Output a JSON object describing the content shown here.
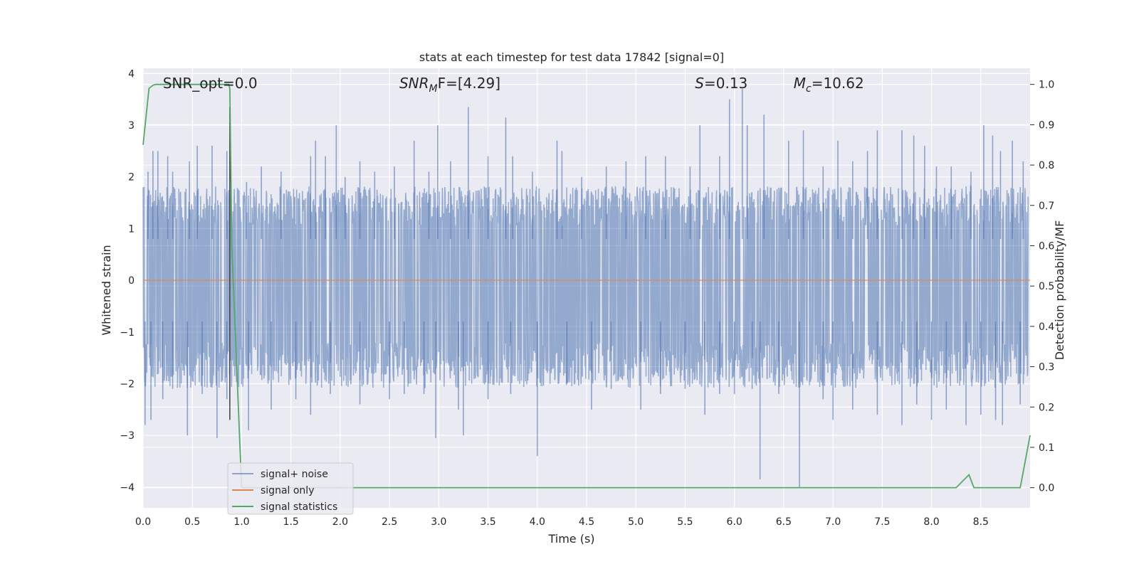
{
  "chart_data": {
    "type": "line",
    "title": "stats at each timestep for test data 17842 [signal=0]",
    "xlabel": "Time (s)",
    "ylabel": "Whitened strain",
    "ylabel_right": "Detection probability/MF",
    "xlim": [
      0.0,
      9.0
    ],
    "ylim": [
      -4.4,
      4.1
    ],
    "ylim_right": [
      -0.05,
      1.04
    ],
    "x_ticks": [
      0.0,
      0.5,
      1.0,
      1.5,
      2.0,
      2.5,
      3.0,
      3.5,
      4.0,
      4.5,
      5.0,
      5.5,
      6.0,
      6.5,
      7.0,
      7.5,
      8.0,
      8.5
    ],
    "x_tick_labels": [
      "0.0",
      "0.5",
      "1.0",
      "1.5",
      "2.0",
      "2.5",
      "3.0",
      "3.5",
      "4.0",
      "4.5",
      "5.0",
      "5.5",
      "6.0",
      "6.5",
      "7.0",
      "7.5",
      "8.0",
      "8.5"
    ],
    "y_ticks": [
      4,
      3,
      2,
      1,
      0,
      -1,
      -2,
      -3,
      -4
    ],
    "y_tick_labels": [
      "4",
      "3",
      "2",
      "1",
      "0",
      "−1",
      "−2",
      "−3",
      "−4"
    ],
    "y_ticks_right": [
      1.0,
      0.9,
      0.8,
      0.7,
      0.6,
      0.5,
      0.4,
      0.3,
      0.2,
      0.1,
      0.0
    ],
    "y_tick_labels_right": [
      "1.0",
      "0.9",
      "0.8",
      "0.7",
      "0.6",
      "0.5",
      "0.4",
      "0.3",
      "0.2",
      "0.1",
      "0.0"
    ],
    "grid": true,
    "legend_position": "lower-left",
    "annotations": [
      {
        "label": "SNR_opt=0.0",
        "x": 0.2,
        "y": 3.8,
        "italic_prefix": false
      },
      {
        "label": "SNR",
        "subscript": "M",
        "suffix": "F=[4.29]",
        "x": 2.6,
        "y": 3.8,
        "italic_prefix": true
      },
      {
        "label": "S",
        "suffix": "=0.13",
        "x": 5.6,
        "y": 3.8,
        "italic_prefix": true
      },
      {
        "label": "M",
        "subscript": "c",
        "suffix": "=10.62",
        "x": 6.6,
        "y": 3.8,
        "italic_prefix": true
      }
    ],
    "marker_line": {
      "x": 0.88,
      "y_range": [
        -2.7,
        3.35
      ]
    },
    "series": [
      {
        "name": "signal+ noise",
        "color": "#4c72b0",
        "axis": "left",
        "style": "dense-noise",
        "envelope_upper_typical": 1.4,
        "envelope_lower_typical": -1.6,
        "spikes_up": [
          [
            0.05,
            2.1
          ],
          [
            0.1,
            2.5
          ],
          [
            0.15,
            2.5
          ],
          [
            0.25,
            2.4
          ],
          [
            0.3,
            2.1
          ],
          [
            0.47,
            2.3
          ],
          [
            0.55,
            2.6
          ],
          [
            0.7,
            2.6
          ],
          [
            0.85,
            2.5
          ],
          [
            1.05,
            1.9
          ],
          [
            1.2,
            2.2
          ],
          [
            1.4,
            2.1
          ],
          [
            1.7,
            2.4
          ],
          [
            1.75,
            2.7
          ],
          [
            1.85,
            2.4
          ],
          [
            1.96,
            3.0
          ],
          [
            2.05,
            2.0
          ],
          [
            2.2,
            2.3
          ],
          [
            2.35,
            2.1
          ],
          [
            2.55,
            2.2
          ],
          [
            2.75,
            2.7
          ],
          [
            2.9,
            2.1
          ],
          [
            2.99,
            3.0
          ],
          [
            3.12,
            2.3
          ],
          [
            3.3,
            3.35
          ],
          [
            3.5,
            2.4
          ],
          [
            3.68,
            3.15
          ],
          [
            3.75,
            2.4
          ],
          [
            3.95,
            2.1
          ],
          [
            4.2,
            2.7
          ],
          [
            4.25,
            2.5
          ],
          [
            4.45,
            2.0
          ],
          [
            4.7,
            2.2
          ],
          [
            4.9,
            2.3
          ],
          [
            5.1,
            2.4
          ],
          [
            5.3,
            2.4
          ],
          [
            5.55,
            2.2
          ],
          [
            5.65,
            3.0
          ],
          [
            5.85,
            2.4
          ],
          [
            5.95,
            3.5
          ],
          [
            6.08,
            3.7
          ],
          [
            6.13,
            3.0
          ],
          [
            6.3,
            3.2
          ],
          [
            6.55,
            2.7
          ],
          [
            6.7,
            2.9
          ],
          [
            6.9,
            2.2
          ],
          [
            7.05,
            2.7
          ],
          [
            7.2,
            2.3
          ],
          [
            7.35,
            2.5
          ],
          [
            7.45,
            2.9
          ],
          [
            7.7,
            2.9
          ],
          [
            7.82,
            2.8
          ],
          [
            7.93,
            2.6
          ],
          [
            8.05,
            2.2
          ],
          [
            8.2,
            2.2
          ],
          [
            8.4,
            2.1
          ],
          [
            8.53,
            3.0
          ],
          [
            8.62,
            2.8
          ],
          [
            8.7,
            2.5
          ],
          [
            8.82,
            2.7
          ],
          [
            8.93,
            2.3
          ]
        ],
        "spikes_down": [
          [
            0.02,
            -2.8
          ],
          [
            0.08,
            -2.7
          ],
          [
            0.2,
            -2.3
          ],
          [
            0.3,
            -2.1
          ],
          [
            0.45,
            -3.0
          ],
          [
            0.6,
            -2.2
          ],
          [
            0.75,
            -3.05
          ],
          [
            0.85,
            -2.3
          ],
          [
            1.07,
            -2.9
          ],
          [
            1.3,
            -2.5
          ],
          [
            1.55,
            -2.3
          ],
          [
            1.7,
            -2.6
          ],
          [
            1.9,
            -2.2
          ],
          [
            2.2,
            -2.4
          ],
          [
            2.5,
            -2.3
          ],
          [
            2.65,
            -2.2
          ],
          [
            2.85,
            -2.2
          ],
          [
            2.97,
            -3.05
          ],
          [
            3.2,
            -2.5
          ],
          [
            3.25,
            -3.0
          ],
          [
            3.5,
            -2.3
          ],
          [
            3.73,
            -2.2
          ],
          [
            4.0,
            -3.4
          ],
          [
            4.3,
            -2.0
          ],
          [
            4.55,
            -2.5
          ],
          [
            4.75,
            -2.1
          ],
          [
            5.05,
            -2.5
          ],
          [
            5.25,
            -2.2
          ],
          [
            5.5,
            -2.1
          ],
          [
            5.7,
            -2.6
          ],
          [
            5.85,
            -2.2
          ],
          [
            6.0,
            -2.2
          ],
          [
            6.18,
            -2.1
          ],
          [
            6.26,
            -3.85
          ],
          [
            6.45,
            -2.2
          ],
          [
            6.66,
            -4.0
          ],
          [
            6.9,
            -2.3
          ],
          [
            7.0,
            -2.7
          ],
          [
            7.2,
            -2.5
          ],
          [
            7.45,
            -2.6
          ],
          [
            7.7,
            -2.8
          ],
          [
            7.85,
            -2.4
          ],
          [
            8.0,
            -2.7
          ],
          [
            8.15,
            -2.5
          ],
          [
            8.35,
            -2.8
          ],
          [
            8.5,
            -2.6
          ],
          [
            8.65,
            -2.7
          ],
          [
            8.72,
            -2.8
          ],
          [
            8.9,
            -2.4
          ]
        ]
      },
      {
        "name": "signal only",
        "color": "#dd8452",
        "axis": "left",
        "x": [
          0.0,
          9.0
        ],
        "y": [
          0.0,
          0.0
        ]
      },
      {
        "name": "signal statistics",
        "color": "#55a868",
        "axis": "right",
        "x": [
          0.0,
          0.06,
          0.1,
          0.13,
          0.2,
          0.3,
          0.5,
          0.7,
          0.87,
          0.88,
          0.9,
          1.0,
          1.5,
          2.0,
          3.0,
          4.0,
          5.0,
          6.0,
          7.0,
          8.0,
          8.25,
          8.38,
          8.43,
          8.5,
          8.9,
          9.0
        ],
        "y": [
          0.85,
          0.99,
          0.998,
          1.0,
          1.0,
          1.0,
          1.0,
          1.0,
          1.0,
          0.99,
          0.6,
          0.0,
          0.0,
          0.0,
          0.0,
          0.0,
          0.0,
          0.0,
          0.0,
          0.0,
          0.0,
          0.032,
          0.0,
          0.0,
          0.0,
          0.13
        ]
      }
    ],
    "legend": [
      {
        "label": "signal+ noise",
        "color": "#4c72b0"
      },
      {
        "label": "signal only",
        "color": "#dd8452"
      },
      {
        "label": "signal statistics",
        "color": "#55a868"
      }
    ],
    "colors": {
      "plot_background": "#eaeaf2",
      "grid": "#ffffff",
      "noise": "#4c72b0",
      "signal": "#dd8452",
      "statistics": "#55a868",
      "marker": "#404040"
    }
  }
}
